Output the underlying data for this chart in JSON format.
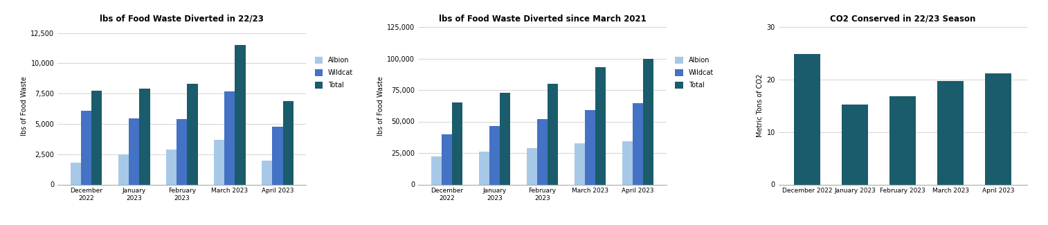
{
  "chart1": {
    "title": "lbs of Food Waste Diverted in 22/23",
    "ylabel": "lbs of Food Waste",
    "categories": [
      "December\n2022",
      "January\n2023",
      "February\n2023",
      "March 2023",
      "April 2023"
    ],
    "albion": [
      1800,
      2500,
      2900,
      3700,
      2000
    ],
    "wildcat": [
      6100,
      5450,
      5400,
      7700,
      4800
    ],
    "total": [
      7750,
      7900,
      8300,
      11500,
      6900
    ],
    "ylim": [
      0,
      13000
    ],
    "yticks": [
      0,
      2500,
      5000,
      7500,
      10000,
      12500
    ],
    "color_albion": "#a8c8e8",
    "color_wildcat": "#4472c4",
    "color_total": "#1a5c6b",
    "legend_labels": [
      "Albion",
      "Wildcat",
      "Total"
    ]
  },
  "chart2": {
    "title": "lbs of Food Waste Diverted since March 2021",
    "ylabel": "lbs of Food Waste",
    "categories": [
      "December\n2022",
      "January\n2023",
      "February\n2023",
      "March 2023",
      "April 2023"
    ],
    "albion": [
      22000,
      26000,
      29000,
      32500,
      34500
    ],
    "wildcat": [
      40000,
      46500,
      52000,
      59000,
      64500
    ],
    "total": [
      65000,
      73000,
      80000,
      93000,
      99500
    ],
    "ylim": [
      0,
      125000
    ],
    "yticks": [
      0,
      25000,
      50000,
      75000,
      100000,
      125000
    ],
    "color_albion": "#a8c8e8",
    "color_wildcat": "#4472c4",
    "color_total": "#1a5c6b",
    "legend_labels": [
      "Albion",
      "Wildcat",
      "Total"
    ]
  },
  "chart3": {
    "title": "CO2 Conserved in 22/23 Season",
    "ylabel": "Metric Tons of CO2",
    "categories": [
      "December 2022",
      "January 2023",
      "February 2023",
      "March 2023",
      "April 2023"
    ],
    "values": [
      24.8,
      15.2,
      16.8,
      19.7,
      21.1
    ],
    "ylim": [
      0,
      30
    ],
    "yticks": [
      0,
      10,
      20,
      30
    ],
    "color": "#1a5c6b"
  },
  "background_color": "#ffffff",
  "grid_color": "#cccccc"
}
